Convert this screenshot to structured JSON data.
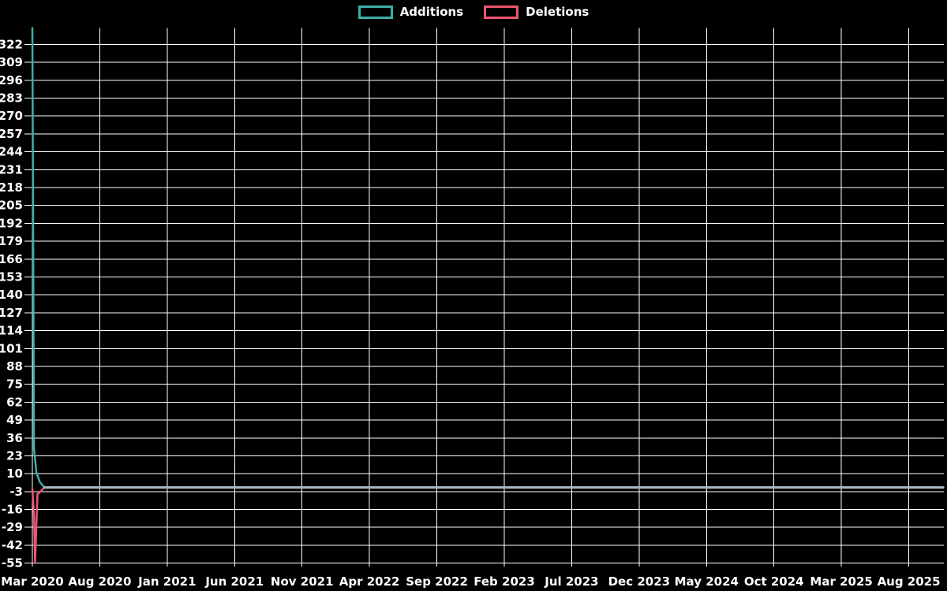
{
  "legend": {
    "items": [
      {
        "label": "Additions",
        "color": "#3cafa9"
      },
      {
        "label": "Deletions",
        "color": "#ee556e"
      }
    ]
  },
  "chart_data": {
    "type": "line",
    "title": "",
    "xlabel": "",
    "ylabel": "",
    "background": "#000000",
    "grid_color": "#ffffff",
    "text_color": "#ffffff",
    "legend_position": "top-center",
    "x_axis": {
      "unit": "months since Mar 2020",
      "tick_labels": [
        "Mar 2020",
        "Aug 2020",
        "Jan 2021",
        "Jun 2021",
        "Nov 2021",
        "Apr 2022",
        "Sep 2022",
        "Feb 2023",
        "Jul 2023",
        "Dec 2023",
        "May 2024",
        "Oct 2024",
        "Mar 2025",
        "Aug 2025"
      ],
      "tick_positions_months": [
        0,
        5,
        10,
        15,
        20,
        25,
        30,
        35,
        40,
        45,
        50,
        55,
        60,
        65
      ],
      "range_months": [
        0,
        67.6
      ]
    },
    "y_axis": {
      "ticks": [
        322,
        309,
        296,
        283,
        270,
        257,
        244,
        231,
        218,
        205,
        192,
        179,
        166,
        153,
        140,
        127,
        114,
        101,
        88,
        75,
        62,
        49,
        36,
        23,
        10,
        -3,
        -16,
        -29,
        -42,
        -55
      ],
      "range": [
        -57.5,
        334
      ]
    },
    "series": [
      {
        "name": "Additions",
        "color": "#3cafa9",
        "points_month_value": [
          [
            0,
            334
          ],
          [
            0.12,
            28
          ],
          [
            0.3,
            11
          ],
          [
            0.55,
            4
          ],
          [
            0.9,
            0
          ],
          [
            67.55,
            0
          ]
        ]
      },
      {
        "name": "Deletions",
        "color": "#ee556e",
        "points_month_value": [
          [
            0,
            -1
          ],
          [
            0.12,
            -20
          ],
          [
            0.2,
            -55
          ],
          [
            0.38,
            -5
          ],
          [
            0.9,
            0
          ],
          [
            67.55,
            0
          ]
        ]
      }
    ],
    "overlap_segment": {
      "note": "both series flat at ~0 overlap into a gray-blue line",
      "color": "#a8bac4",
      "points_month_value": [
        [
          0.9,
          0
        ],
        [
          67.55,
          0
        ]
      ]
    }
  }
}
